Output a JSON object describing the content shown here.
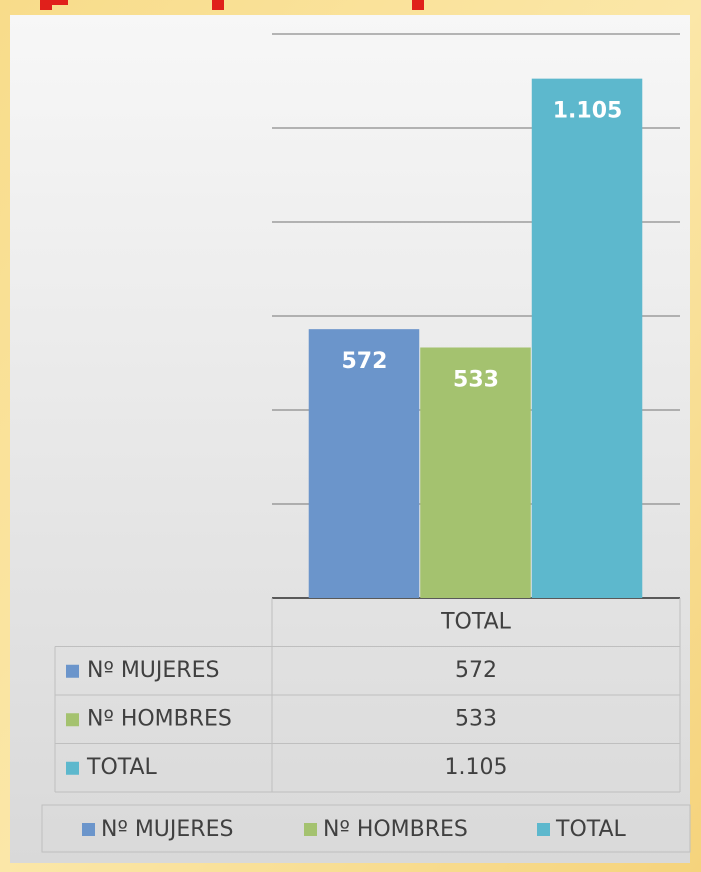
{
  "chart_data": {
    "type": "bar",
    "categories": [
      "TOTAL"
    ],
    "series": [
      {
        "name": "Nº MUJERES",
        "color": "#6b95cb",
        "values": [
          572
        ],
        "value_labels": [
          "572"
        ]
      },
      {
        "name": "Nº HOMBRES",
        "color": "#a4c26f",
        "values": [
          533
        ],
        "value_labels": [
          "533"
        ]
      },
      {
        "name": "TOTAL",
        "color": "#5db8cd",
        "values": [
          1105
        ],
        "value_labels": [
          "1.105"
        ]
      }
    ],
    "ylim": [
      0,
      1200
    ],
    "yticks": [
      0,
      200,
      400,
      600,
      800,
      1000,
      1200
    ],
    "grid": true,
    "legend": "bottom"
  }
}
